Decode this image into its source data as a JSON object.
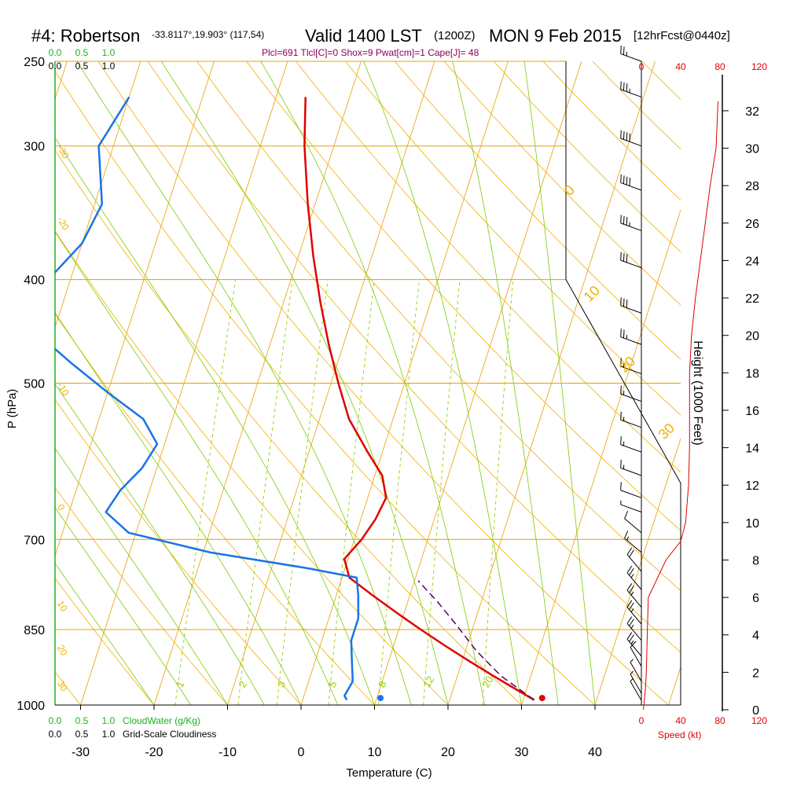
{
  "header": {
    "station": "#4: Robertson",
    "coords": "-33.8117°,19.903° (117,54)",
    "valid": "Valid 1400 LST",
    "utc": "(1200Z)",
    "date": "MON 9 Feb 2015",
    "fcst": "[12hrFcst@0440z]",
    "indices": "Plcl=691 Tlcl[C]=0 Shox=9 Pwat[cm]=1 Cape[J]= 48"
  },
  "colors": {
    "isotherm": "#e8a000",
    "dryAdiabat": "#f0b000",
    "moistAdiabat": "#7ccc00",
    "mixingRatio": "#9ccc00",
    "temperature": "#e00000",
    "dewpoint": "#1a73e8",
    "parcel": "#5a0060",
    "cloudwater": "#20b020",
    "speed": "#e00000",
    "title": "#000000",
    "indices": "#8b0060"
  },
  "chart_data": {
    "type": "line",
    "title": "Valid 1400 LST (1200Z) MON 9 Feb 2015",
    "xlabel": "Temperature (C)",
    "ylabel": "P (hPa)",
    "x_ticks": [
      "-30",
      "-20",
      "-10",
      "0",
      "10",
      "20",
      "30",
      "40"
    ],
    "x_tick_values": [
      -30,
      -20,
      -10,
      0,
      10,
      20,
      30,
      40
    ],
    "p_ticks": [
      "250",
      "300",
      "400",
      "500",
      "700",
      "850",
      "1000"
    ],
    "p_tick_values": [
      250,
      300,
      400,
      500,
      700,
      850,
      1000
    ],
    "isotherm_range": [
      -150,
      50
    ],
    "dry_adiabat_labels": [
      "-10",
      "0",
      "10",
      "20",
      "30"
    ],
    "dry_adiabat_label_values": [
      -10,
      0,
      10,
      20,
      30
    ],
    "moist_adiabat_labels": [
      "-30",
      "-20",
      "-10",
      "0",
      "10",
      "20",
      "30"
    ],
    "moist_adiabat_label_values": [
      -30,
      -20,
      -10,
      0,
      10,
      20,
      30
    ],
    "mixing_ratio_labels": [
      "1",
      "2",
      "3",
      "5",
      "8",
      "12",
      "20"
    ],
    "mixing_ratio_values": [
      1,
      2,
      3,
      5,
      8,
      12,
      20
    ],
    "series": [
      {
        "name": "Temperature",
        "points": [
          [
            -26,
            270
          ],
          [
            -24,
            300
          ],
          [
            -21,
            340
          ],
          [
            -18,
            380
          ],
          [
            -15,
            420
          ],
          [
            -12,
            460
          ],
          [
            -9,
            500
          ],
          [
            -6,
            540
          ],
          [
            -2,
            580
          ],
          [
            1,
            610
          ],
          [
            2.5,
            640
          ],
          [
            2,
            670
          ],
          [
            1,
            700
          ],
          [
            -0.5,
            730
          ],
          [
            1,
            760
          ],
          [
            5,
            790
          ],
          [
            9,
            820
          ],
          [
            13,
            850
          ],
          [
            17,
            880
          ],
          [
            21,
            910
          ],
          [
            25,
            940
          ],
          [
            29,
            970
          ],
          [
            31.5,
            989
          ]
        ]
      },
      {
        "name": "Dewpoint",
        "points": [
          [
            -50,
            270
          ],
          [
            -52,
            300
          ],
          [
            -49,
            340
          ],
          [
            -50,
            370
          ],
          [
            -53,
            400
          ],
          [
            -54,
            430
          ],
          [
            -52,
            450
          ],
          [
            -46,
            480
          ],
          [
            -40,
            510
          ],
          [
            -34,
            540
          ],
          [
            -31,
            570
          ],
          [
            -32,
            600
          ],
          [
            -34,
            630
          ],
          [
            -35,
            660
          ],
          [
            -31,
            690
          ],
          [
            -19,
            720
          ],
          [
            -5,
            745
          ],
          [
            2,
            760
          ],
          [
            3,
            790
          ],
          [
            4,
            830
          ],
          [
            4,
            870
          ],
          [
            5,
            910
          ],
          [
            6,
            950
          ],
          [
            5.5,
            980
          ],
          [
            6,
            989
          ]
        ]
      },
      {
        "name": "Parcel",
        "points": [
          [
            31.5,
            989
          ],
          [
            26,
            940
          ],
          [
            21.5,
            890
          ],
          [
            17.5,
            840
          ],
          [
            14,
            800
          ],
          [
            12,
            780
          ],
          [
            10.5,
            765
          ]
        ]
      }
    ],
    "surface_temperature": 32.5,
    "surface_dewpoint": 10.5,
    "height_scale": {
      "label": "Height (1000 Feet)",
      "ticks": [
        "0",
        "2",
        "4",
        "6",
        "8",
        "10",
        "12",
        "14",
        "16",
        "18",
        "20",
        "22",
        "24",
        "26",
        "28",
        "30",
        "32"
      ]
    },
    "wind_speed": {
      "label": "Speed (kt)",
      "ticks": [
        "0",
        "40",
        "80",
        "120"
      ],
      "profile_heights_kft": [
        0,
        1,
        2,
        4,
        6,
        8,
        9,
        10,
        12,
        14,
        16,
        18,
        20,
        22,
        24,
        26,
        28,
        30,
        32.5
      ],
      "profile_speeds_kt": [
        2,
        4,
        5,
        6,
        7,
        25,
        40,
        45,
        48,
        49,
        49,
        49,
        51,
        55,
        60,
        65,
        70,
        76,
        78
      ]
    },
    "barbs": [
      [
        250,
        25,
        290
      ],
      [
        270,
        35,
        290
      ],
      [
        300,
        40,
        290
      ],
      [
        330,
        40,
        290
      ],
      [
        360,
        35,
        290
      ],
      [
        390,
        30,
        290
      ],
      [
        430,
        30,
        290
      ],
      [
        460,
        25,
        290
      ],
      [
        490,
        15,
        290
      ],
      [
        520,
        15,
        290
      ],
      [
        550,
        15,
        290
      ],
      [
        580,
        15,
        290
      ],
      [
        610,
        15,
        290
      ],
      [
        640,
        10,
        290
      ],
      [
        660,
        5,
        290
      ],
      [
        690,
        10,
        310
      ],
      [
        720,
        15,
        310
      ],
      [
        750,
        20,
        320
      ],
      [
        780,
        25,
        320
      ],
      [
        810,
        25,
        320
      ],
      [
        840,
        25,
        320
      ],
      [
        870,
        25,
        320
      ],
      [
        900,
        25,
        320
      ],
      [
        920,
        10,
        330
      ],
      [
        950,
        5,
        330
      ],
      [
        975,
        5,
        330
      ],
      [
        990,
        5,
        330
      ]
    ],
    "cloudwater": {
      "label": "CloudWater (g/Kg)",
      "ticks": [
        "0.0",
        "0.5",
        "1.0"
      ]
    },
    "cloudiness": {
      "label": "Grid-Scale Cloudiness",
      "ticks": [
        "0.0",
        "0.5",
        "1.0"
      ]
    }
  }
}
